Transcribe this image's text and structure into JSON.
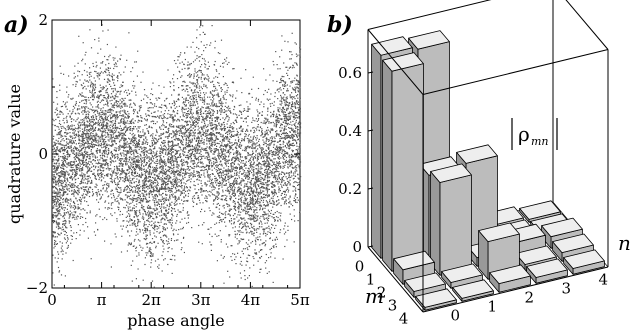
{
  "chart_data": [
    {
      "type": "scatter",
      "panel_label": "a)",
      "xlabel": "phase angle",
      "ylabel": "quadrature value",
      "xlim": [
        0,
        15.708
      ],
      "ylim": [
        -2,
        2
      ],
      "x_tick_labels": [
        "0",
        "π",
        "2π",
        "3π",
        "4π",
        "5π"
      ],
      "x_tick_values": [
        0,
        3.1416,
        6.2832,
        9.4248,
        12.5664,
        15.708
      ],
      "y_tick_labels": [
        "−2",
        "0",
        "2"
      ],
      "y_tick_values": [
        -2,
        0,
        2
      ],
      "point_count": 9000,
      "point_color": "#555555",
      "envelope_centre": [
        {
          "phase": 0.0,
          "centre": -0.35
        },
        {
          "phase": 3.1416,
          "centre": 0.45
        },
        {
          "phase": 6.2832,
          "centre": -0.35
        },
        {
          "phase": 9.4248,
          "centre": 0.45
        },
        {
          "phase": 12.5664,
          "centre": -0.35
        },
        {
          "phase": 15.708,
          "centre": 0.45
        }
      ],
      "grid": false
    },
    {
      "type": "bar3d",
      "panel_label": "b)",
      "annotation": "|ρmn|",
      "annotation_main": "ρ",
      "annotation_sub": "mn",
      "xlabel": "m",
      "ylabel": "n",
      "m_tick_labels": [
        "0",
        "1",
        "2",
        "3",
        "4"
      ],
      "n_tick_labels": [
        "0",
        "1",
        "2",
        "3",
        "4"
      ],
      "z_tick_labels": [
        "0",
        "0.2",
        "0.4",
        "0.6"
      ],
      "z_tick_values": [
        0,
        0.2,
        0.4,
        0.6
      ],
      "zlim": [
        0,
        0.75
      ],
      "matrix": [
        [
          0.7,
          0.69,
          0.05,
          0.02,
          0.01
        ],
        [
          0.69,
          0.3,
          0.31,
          0.02,
          0.01
        ],
        [
          0.05,
          0.32,
          0.03,
          0.05,
          0.04
        ],
        [
          0.02,
          0.02,
          0.13,
          0.02,
          0.03
        ],
        [
          0.01,
          0.01,
          0.03,
          0.02,
          0.02
        ]
      ],
      "colors": {
        "front": "#bcbcbc",
        "side": "#999999",
        "top": "#eeeeee",
        "edge": "#000000"
      }
    }
  ]
}
